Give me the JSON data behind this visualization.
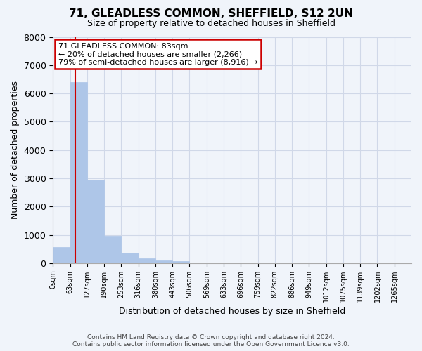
{
  "title": "71, GLEADLESS COMMON, SHEFFIELD, S12 2UN",
  "subtitle": "Size of property relative to detached houses in Sheffield",
  "xlabel": "Distribution of detached houses by size in Sheffield",
  "ylabel": "Number of detached properties",
  "bin_labels": [
    "0sqm",
    "63sqm",
    "127sqm",
    "190sqm",
    "253sqm",
    "316sqm",
    "380sqm",
    "443sqm",
    "506sqm",
    "569sqm",
    "633sqm",
    "696sqm",
    "759sqm",
    "822sqm",
    "886sqm",
    "949sqm",
    "1012sqm",
    "1075sqm",
    "1139sqm",
    "1202sqm",
    "1265sqm"
  ],
  "bar_heights": [
    560,
    6400,
    2950,
    975,
    380,
    175,
    90,
    60,
    0,
    0,
    0,
    0,
    0,
    0,
    0,
    0,
    0,
    0,
    0,
    0,
    0
  ],
  "bar_color": "#aec6e8",
  "bar_edge_color": "#aec6e8",
  "property_line_x": 1.31,
  "property_label": "71 GLEADLESS COMMON: 83sqm",
  "annotation_line1": "← 20% of detached houses are smaller (2,266)",
  "annotation_line2": "79% of semi-detached houses are larger (8,916) →",
  "annotation_box_color": "#ffffff",
  "annotation_box_edge": "#cc0000",
  "property_line_color": "#cc0000",
  "ylim": [
    0,
    8000
  ],
  "yticks": [
    0,
    1000,
    2000,
    3000,
    4000,
    5000,
    6000,
    7000,
    8000
  ],
  "grid_color": "#d0d8e8",
  "background_color": "#f0f4fa",
  "footer1": "Contains HM Land Registry data © Crown copyright and database right 2024.",
  "footer2": "Contains public sector information licensed under the Open Government Licence v3.0."
}
